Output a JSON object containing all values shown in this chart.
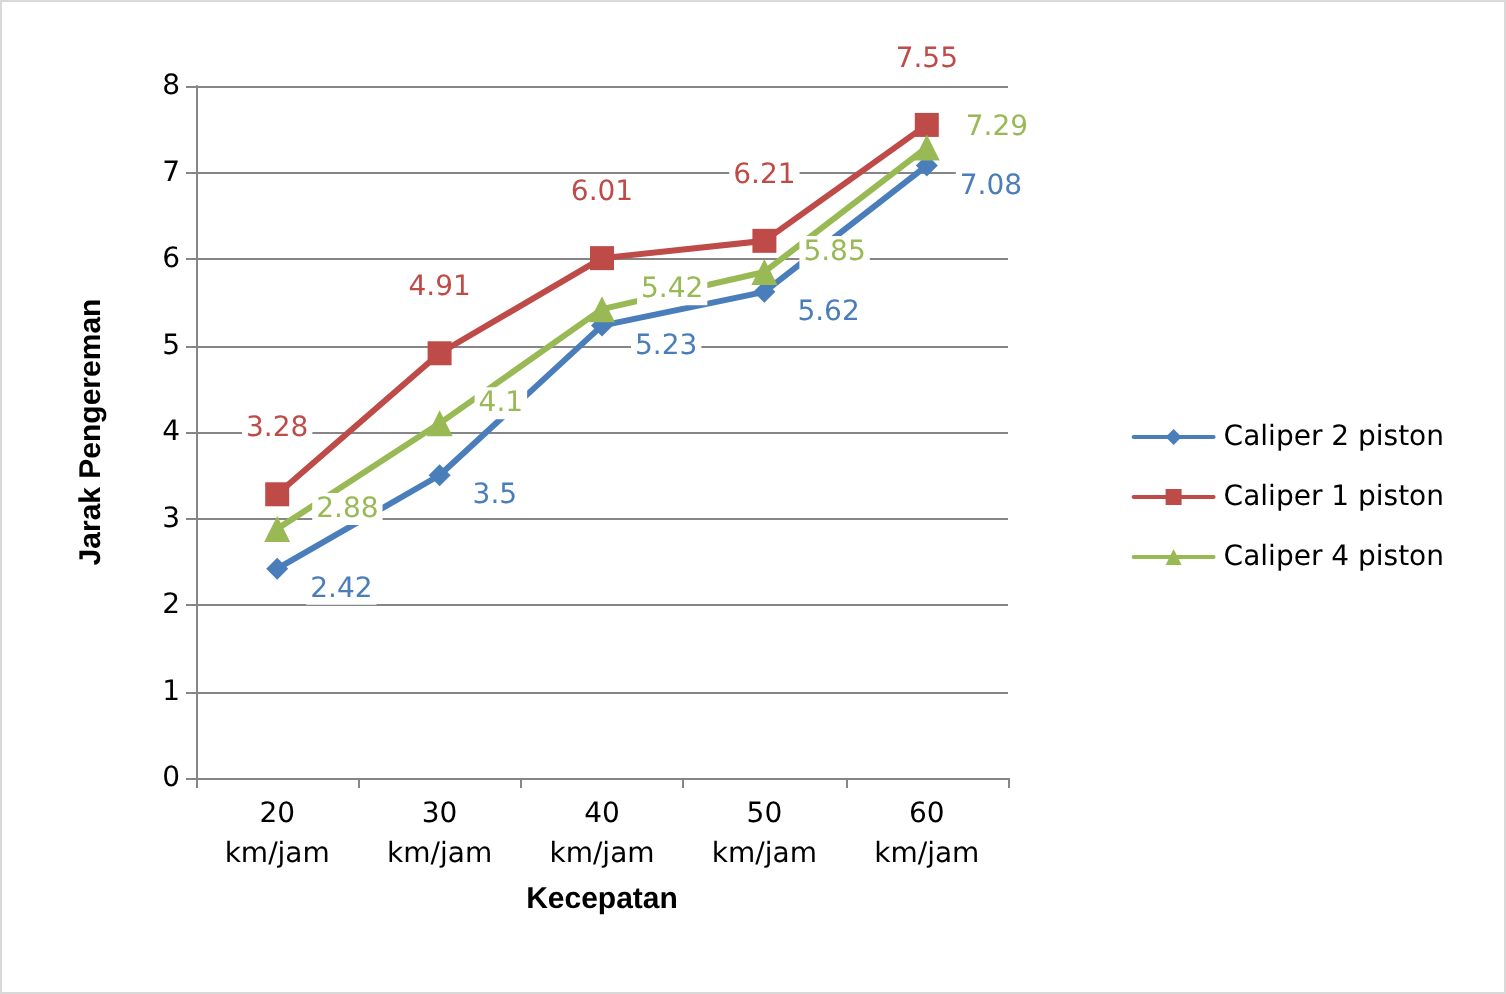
{
  "chart_data": {
    "type": "line",
    "xlabel": "Kecepatan",
    "ylabel": "Jarak Pengereman",
    "categories": [
      "20 km/jam",
      "30 km/jam",
      "40 km/jam",
      "50 km/jam",
      "60 km/jam"
    ],
    "series": [
      {
        "name": "Caliper 2 piston",
        "color": "#4a7ebb",
        "marker": "diamond",
        "values": [
          2.42,
          3.5,
          5.23,
          5.62,
          7.08
        ]
      },
      {
        "name": "Caliper 1 piston",
        "color": "#be4b48",
        "marker": "square",
        "values": [
          3.28,
          4.91,
          6.01,
          6.21,
          7.55
        ]
      },
      {
        "name": "Caliper 4 piston",
        "color": "#98b954",
        "marker": "triangle",
        "values": [
          2.88,
          4.1,
          5.42,
          5.85,
          7.29
        ]
      }
    ],
    "ylim": [
      0,
      8
    ],
    "yticks": [
      0,
      1,
      2,
      3,
      4,
      5,
      6,
      7,
      8
    ],
    "grid": "y",
    "legend": "right",
    "data_labels": true,
    "line_style": "solid"
  }
}
